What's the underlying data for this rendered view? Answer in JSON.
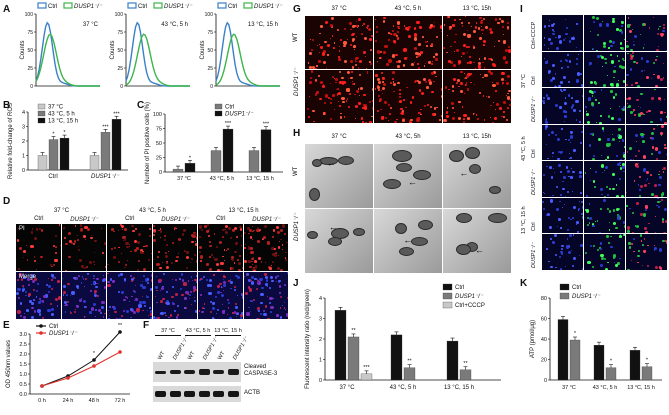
{
  "panels": {
    "A": "A",
    "B": "B",
    "C": "C",
    "D": "D",
    "E": "E",
    "F": "F",
    "G": "G",
    "H": "H",
    "I": "I",
    "J": "J",
    "K": "K"
  },
  "colors": {
    "ctrl": "#3a80c8",
    "dusp1": "#3bb54a",
    "dark": "#111111",
    "mid": "#7a7a7a",
    "light": "#c8c8c8",
    "red": "#e0302a"
  },
  "panel_a": {
    "legend_ctrl": "Ctrl",
    "legend_dusp1": "DUSP1⁻/⁻",
    "plots": [
      {
        "cond": "37 °C"
      },
      {
        "cond": "43 °C, 5 h"
      },
      {
        "cond": "13 °C, 15 h"
      }
    ],
    "ylabel": "Counts",
    "yticks": [
      "0",
      "25",
      "50",
      "75",
      "100"
    ]
  },
  "chart_b": {
    "type": "bar",
    "ylabel": "Relative fold-change of ROS",
    "yticks": [
      "0",
      "1",
      "2",
      "3",
      "4"
    ],
    "ylim": [
      0,
      4
    ],
    "legend": [
      "37 °C",
      "43 °C, 5 h",
      "13 °C, 15 h"
    ],
    "groups": [
      "Ctrl",
      "DUSP1⁻/⁻"
    ],
    "series": [
      {
        "name": "37 °C",
        "values": [
          1.0,
          1.0
        ],
        "sig": [
          "",
          ""
        ]
      },
      {
        "name": "43 °C, 5 h",
        "values": [
          2.1,
          2.6
        ],
        "sig": [
          "*",
          "***"
        ]
      },
      {
        "name": "13 °C, 15 h",
        "values": [
          2.2,
          3.5
        ],
        "sig": [
          "*",
          "***"
        ]
      }
    ]
  },
  "chart_c": {
    "type": "bar",
    "ylabel": "Number of PI positive cells (%)",
    "yticks": [
      "0",
      "25",
      "50",
      "75",
      "100"
    ],
    "ylim": [
      0,
      100
    ],
    "legend": [
      "Ctrl",
      "DUSP1⁻/⁻"
    ],
    "categories": [
      "37 °C",
      "43 °C, 5 h",
      "13 °C, 15 h"
    ],
    "series": [
      {
        "name": "Ctrl",
        "values": [
          5,
          37,
          37
        ]
      },
      {
        "name": "DUSP1⁻/⁻",
        "values": [
          15,
          74,
          73
        ]
      }
    ],
    "sig": [
      "*",
      "***",
      "***"
    ]
  },
  "panel_d": {
    "conds": [
      "37 °C",
      "43 °C, 5 h",
      "13 °C, 15 h"
    ],
    "cols": [
      "Ctrl",
      "DUSP1⁻/⁻",
      "Ctrl",
      "DUSP1⁻/⁻",
      "Ctrl",
      "DUSP1⁻/⁻"
    ],
    "rows": [
      "PI",
      "Merge"
    ]
  },
  "chart_e": {
    "type": "line",
    "ylabel": "OD 450nm values",
    "yticks": [
      "0.0",
      "0.5",
      "1.0",
      "1.5",
      "2.0",
      "2.5",
      "3.0"
    ],
    "ylim": [
      0,
      3
    ],
    "categories": [
      "0 h",
      "24 h",
      "48 h",
      "72 h"
    ],
    "legend": [
      "Ctrl",
      "DUSP1⁻/⁻"
    ],
    "series": [
      {
        "name": "Ctrl",
        "values": [
          0.4,
          0.9,
          1.7,
          3.1
        ]
      },
      {
        "name": "DUSP1⁻/⁻",
        "values": [
          0.4,
          0.8,
          1.4,
          2.1
        ]
      }
    ],
    "sig": [
      "*",
      "**"
    ]
  },
  "panel_f": {
    "conds": [
      "37 °C",
      "43 °C, 5 h",
      "13 °C, 15 h"
    ],
    "lanes": [
      "WT",
      "DUSP1⁻/⁻",
      "WT",
      "DUSP1⁻/⁻",
      "WT",
      "DUSP1⁻/⁻"
    ],
    "band1": "Cleaved CASPASE-3",
    "band2": "ACTB"
  },
  "panel_g": {
    "conds": [
      "37 °C",
      "43 °C, 5 h",
      "13 °C, 15h"
    ],
    "rows": [
      "WT",
      "DUSP1⁻/⁻"
    ]
  },
  "panel_h": {
    "conds": [
      "37 °C",
      "43 °C, 5h",
      "13 °C, 15h"
    ],
    "rows": [
      "WT",
      "DUSP1⁻/⁻"
    ]
  },
  "panel_i": {
    "row_labels": [
      "Ctrl+CCCP",
      "Ctrl",
      "DUSP1⁻/⁻",
      "Ctrl",
      "DUSP1⁻/⁻",
      "Ctrl",
      "DUSP1⁻/⁻"
    ],
    "cond_labels": [
      "37 °C",
      "43 °C, 5 h",
      "13 °C, 15 h"
    ]
  },
  "chart_j": {
    "type": "bar",
    "ylabel": "Fluorescent intensity ratio (red/green)",
    "yticks": [
      "0",
      "1",
      "2",
      "3",
      "4"
    ],
    "ylim": [
      0,
      4
    ],
    "categories": [
      "37 °C",
      "43 °C, 5 h",
      "13 °C, 15 h"
    ],
    "legend": [
      "Ctrl",
      "DUSP1⁻/⁻",
      "Ctrl+CCCP"
    ],
    "series": [
      {
        "name": "Ctrl",
        "values": [
          3.4,
          2.2,
          1.9
        ],
        "sig": [
          "",
          "",
          ""
        ]
      },
      {
        "name": "DUSP1⁻/⁻",
        "values": [
          2.1,
          0.6,
          0.5
        ],
        "sig": [
          "**",
          "**",
          "**"
        ]
      },
      {
        "name": "Ctrl+CCCP",
        "values": [
          0.3,
          null,
          null
        ],
        "sig": [
          "***",
          "",
          ""
        ]
      }
    ]
  },
  "chart_k": {
    "type": "bar",
    "ylabel": "ATP (pmol/μg)",
    "yticks": [
      "0",
      "20",
      "40",
      "60",
      "80"
    ],
    "ylim": [
      0,
      80
    ],
    "categories": [
      "37 °C",
      "43 °C, 5 h",
      "13 °C, 15 h"
    ],
    "legend": [
      "Ctrl",
      "DUSP1⁻/⁻"
    ],
    "series": [
      {
        "name": "Ctrl",
        "values": [
          59,
          34,
          29
        ]
      },
      {
        "name": "DUSP1⁻/⁻",
        "values": [
          39,
          12,
          13
        ]
      }
    ],
    "sig": [
      "*",
      "*",
      "*"
    ]
  }
}
